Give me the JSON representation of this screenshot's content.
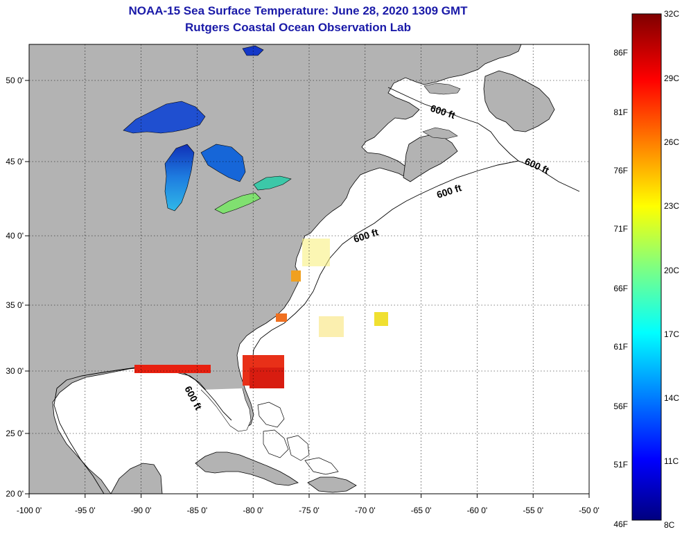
{
  "title": {
    "line1": "NOAA-15 Sea Surface Temperature:  June 28, 2020 1309 GMT",
    "line2": "Rutgers Coastal Ocean Observation Lab"
  },
  "map": {
    "lon_ticks": [
      "-100 0'",
      "-95 0'",
      "-90 0'",
      "-85 0'",
      "-80 0'",
      "-75 0'",
      "-70 0'",
      "-65 0'",
      "-60 0'",
      "-55 0'",
      "-50 0'"
    ],
    "lat_ticks": [
      "50 0'",
      "45 0'",
      "40 0'",
      "35 0'",
      "30 0'",
      "25 0'",
      "20 0'"
    ],
    "contour_labels": [
      "600 ft",
      "600 ft",
      "600 ft",
      "600 ft",
      "600 ft"
    ],
    "colors": {
      "land": "#b3b3b3",
      "ocean": "#ffffff",
      "grid": "#000000"
    }
  },
  "colorbar": {
    "fahrenheit": [
      "86F",
      "81F",
      "76F",
      "71F",
      "66F",
      "61F",
      "56F",
      "51F",
      "46F"
    ],
    "celsius": [
      "32C",
      "29C",
      "26C",
      "23C",
      "20C",
      "17C",
      "14C",
      "11C",
      "8C"
    ]
  }
}
